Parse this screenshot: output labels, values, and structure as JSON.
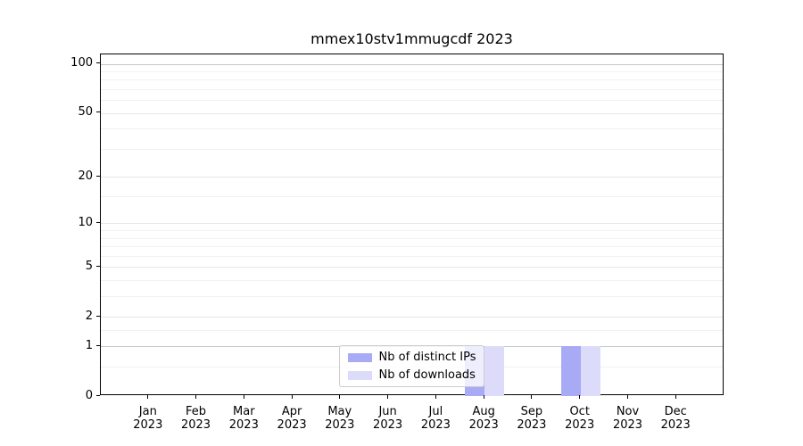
{
  "chart_data": {
    "type": "bar",
    "title": "mmex10stv1mmugcdf 2023",
    "xlabel": "",
    "ylabel": "",
    "yscale": "log1p",
    "ylim": [
      0,
      114
    ],
    "xlim": [
      -1,
      12
    ],
    "yticks": [
      0,
      1,
      2,
      5,
      10,
      20,
      50,
      100
    ],
    "grid": {
      "emphasis": [
        1,
        100
      ],
      "major": [
        2,
        5,
        10,
        20,
        50
      ],
      "minor": [
        0.5,
        1.5,
        3,
        4,
        6,
        7,
        8,
        9,
        15,
        30,
        40,
        60,
        70,
        80,
        90
      ]
    },
    "categories": [
      {
        "month": "Jan",
        "year": "2023"
      },
      {
        "month": "Feb",
        "year": "2023"
      },
      {
        "month": "Mar",
        "year": "2023"
      },
      {
        "month": "Apr",
        "year": "2023"
      },
      {
        "month": "May",
        "year": "2023"
      },
      {
        "month": "Jun",
        "year": "2023"
      },
      {
        "month": "Jul",
        "year": "2023"
      },
      {
        "month": "Aug",
        "year": "2023"
      },
      {
        "month": "Sep",
        "year": "2023"
      },
      {
        "month": "Oct",
        "year": "2023"
      },
      {
        "month": "Nov",
        "year": "2023"
      },
      {
        "month": "Dec",
        "year": "2023"
      }
    ],
    "series": [
      {
        "name": "Nb of distinct IPs",
        "color": "#a9aaf5",
        "values": [
          0,
          0,
          0,
          0,
          0,
          0,
          0,
          1,
          0,
          1,
          0,
          0
        ]
      },
      {
        "name": "Nb of downloads",
        "color": "#dcdcfa",
        "values": [
          0,
          0,
          0,
          0,
          0,
          0,
          0,
          1,
          0,
          1,
          0,
          0
        ]
      }
    ],
    "legend_position": "lower center inside plot"
  }
}
